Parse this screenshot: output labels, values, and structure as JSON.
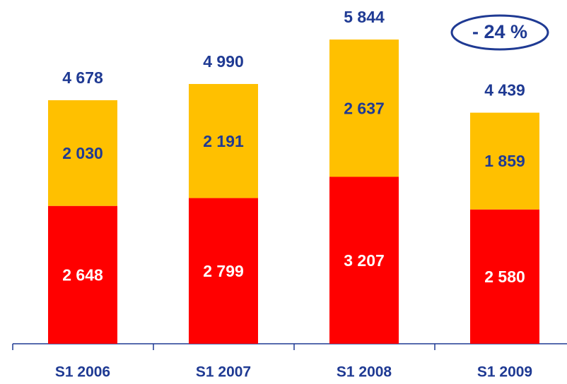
{
  "chart_data": {
    "type": "stacked_bar",
    "categories": [
      "S1 2006",
      "S1 2007",
      "S1 2008",
      "S1 2009"
    ],
    "series": [
      {
        "color": "#ff0000",
        "values": [
          2648,
          2799,
          3207,
          2580
        ],
        "value_labels": [
          "2 648",
          "2 799",
          "3 207",
          "2 580"
        ],
        "label_color": "#ffffff"
      },
      {
        "color": "#ffc000",
        "values": [
          2030,
          2191,
          2637,
          1859
        ],
        "value_labels": [
          "2 030",
          "2 191",
          "2 637",
          "1 859"
        ],
        "label_color": "#1f3a93"
      }
    ],
    "total_labels": [
      "4 678",
      "4 990",
      "5 844",
      "4 439"
    ],
    "annotation": "- 24 %"
  }
}
